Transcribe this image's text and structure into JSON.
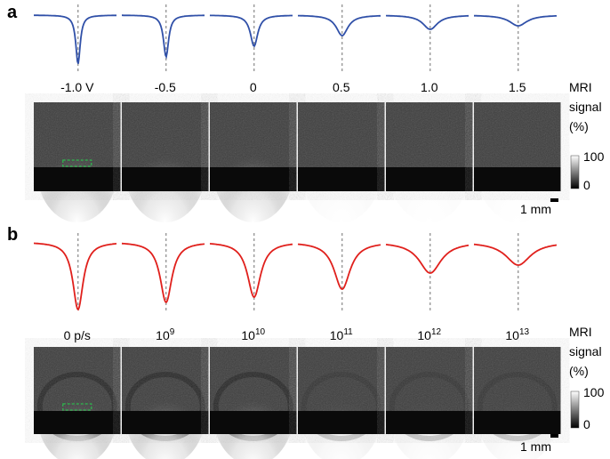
{
  "panels": [
    {
      "label": "a",
      "columns": [
        {
          "text": "-1.0 V"
        },
        {
          "text": "-0.5"
        },
        {
          "text": "0"
        },
        {
          "text": "0.5"
        },
        {
          "text": "1.0"
        },
        {
          "text": "1.5"
        }
      ],
      "colorbar": {
        "title": [
          "MRI",
          "signal",
          "(%)"
        ],
        "max": "100",
        "min": "0"
      },
      "scale_bar": "1 mm"
    },
    {
      "label": "b",
      "columns": [
        {
          "text": "0 p/s"
        },
        {
          "text": "10",
          "exponent": "9"
        },
        {
          "text": "10",
          "exponent": "10"
        },
        {
          "text": "10",
          "exponent": "11"
        },
        {
          "text": "10",
          "exponent": "12"
        },
        {
          "text": "10",
          "exponent": "13"
        }
      ],
      "colorbar": {
        "title": [
          "MRI",
          "signal",
          "(%)"
        ],
        "max": "100",
        "min": "0"
      },
      "scale_bar": "1 mm"
    }
  ]
}
